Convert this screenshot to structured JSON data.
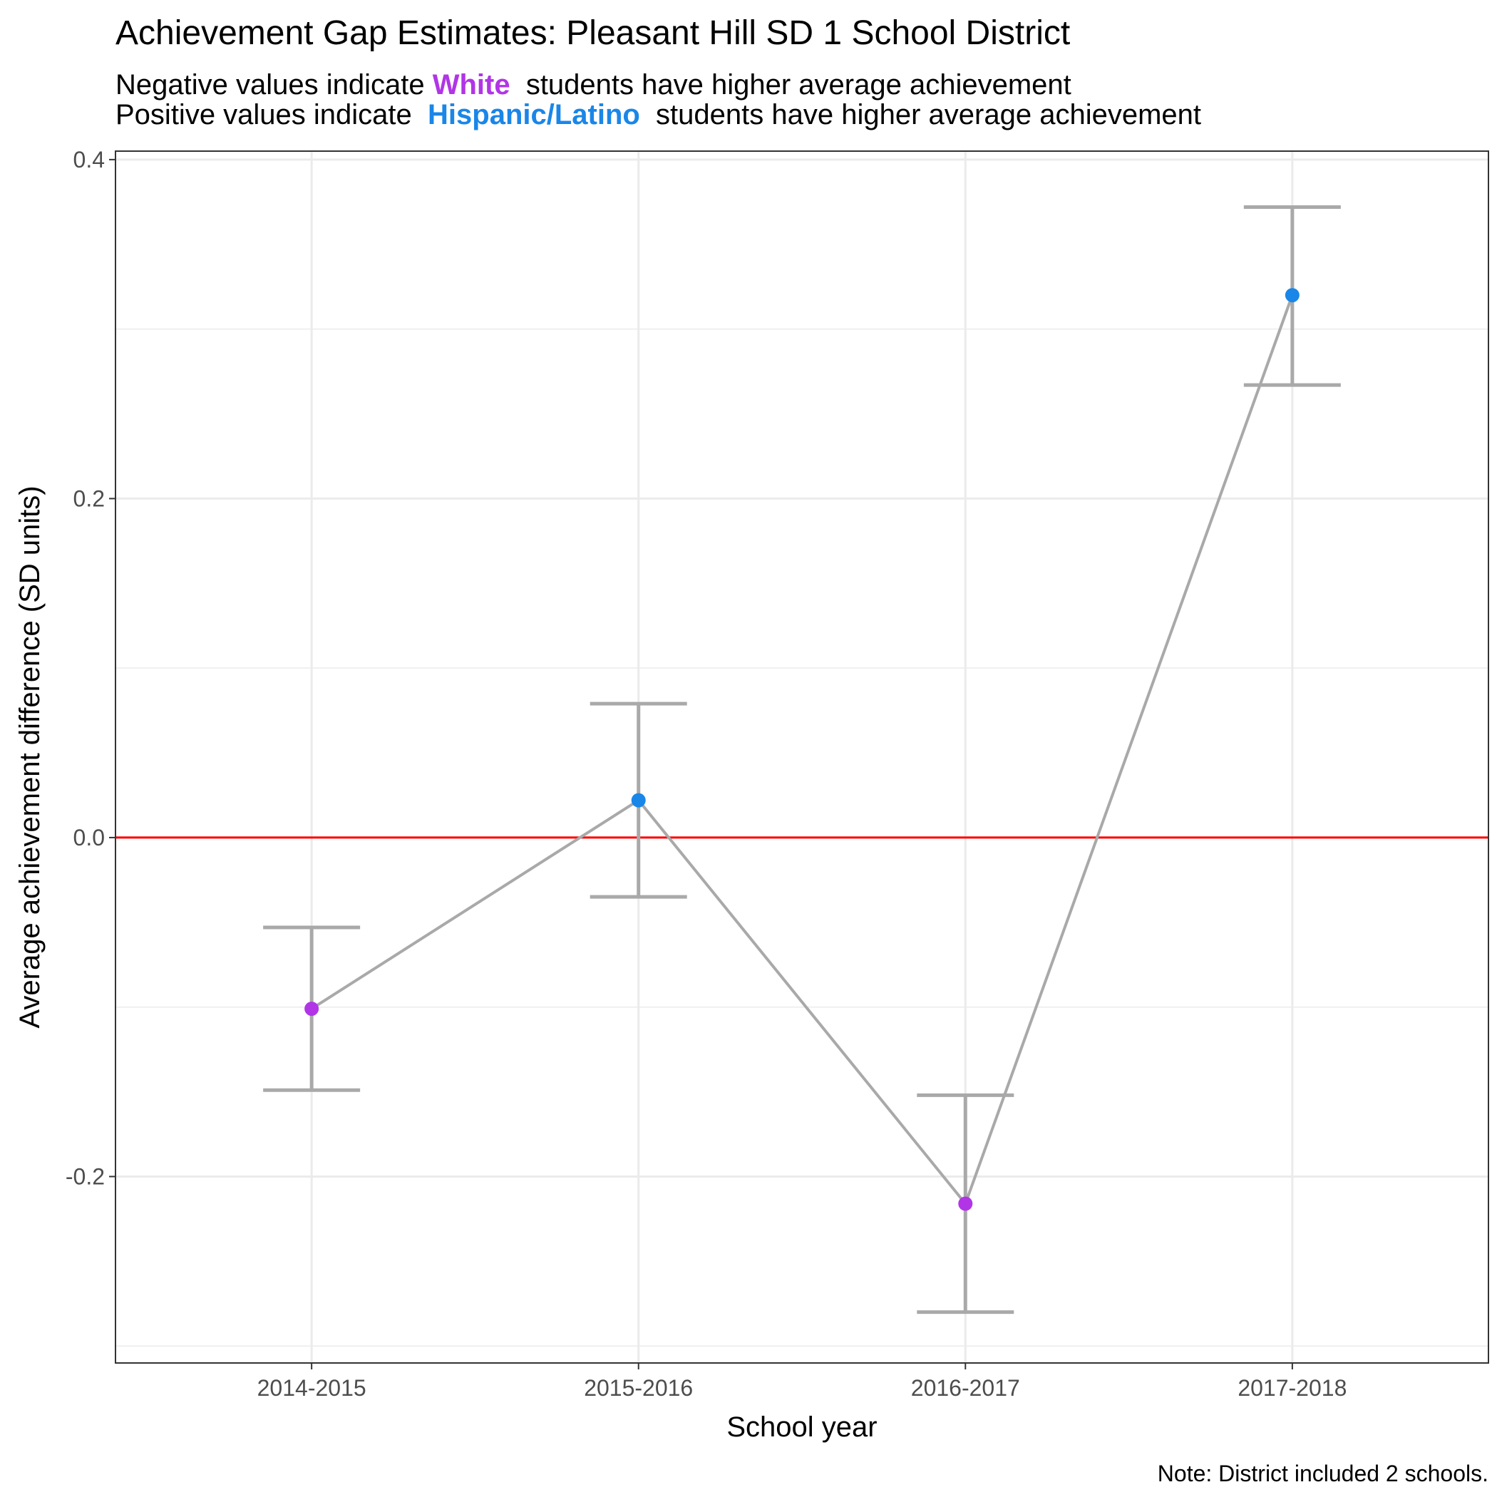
{
  "chart_data": {
    "type": "line",
    "title": "Achievement Gap Estimates: Pleasant Hill SD 1 School District",
    "subtitle": {
      "line1_before": "Negative values indicate ",
      "line1_group": "White",
      "line1_after": "  students have higher average achievement",
      "line2_before": "Positive values indicate  ",
      "line2_group": "Hispanic/Latino",
      "line2_after": "  students have higher average achievement"
    },
    "xlabel": "School year",
    "ylabel": "Average achievement difference (SD units)",
    "caption": "Note: District included 2 schools.",
    "categories": [
      "2014-2015",
      "2015-2016",
      "2016-2017",
      "2017-2018"
    ],
    "values": [
      -0.101,
      0.022,
      -0.216,
      0.32
    ],
    "ci_lower": [
      -0.149,
      -0.035,
      -0.28,
      0.267
    ],
    "ci_upper": [
      -0.053,
      0.079,
      -0.152,
      0.372
    ],
    "point_groups": [
      "White",
      "Hispanic/Latino",
      "White",
      "Hispanic/Latino"
    ],
    "ylim": [
      -0.31,
      0.405
    ],
    "yticks": [
      -0.2,
      0.0,
      0.2,
      0.4
    ],
    "ytick_labels": [
      "-0.2",
      "0.0",
      "0.2",
      "0.4"
    ],
    "reference_line": 0,
    "grid": true,
    "colors": {
      "White": "#b135e6",
      "Hispanic/Latino": "#1a86e8",
      "line": "#a9a9a9",
      "reference": "#ff0000",
      "grid": "#ebebeb"
    }
  }
}
